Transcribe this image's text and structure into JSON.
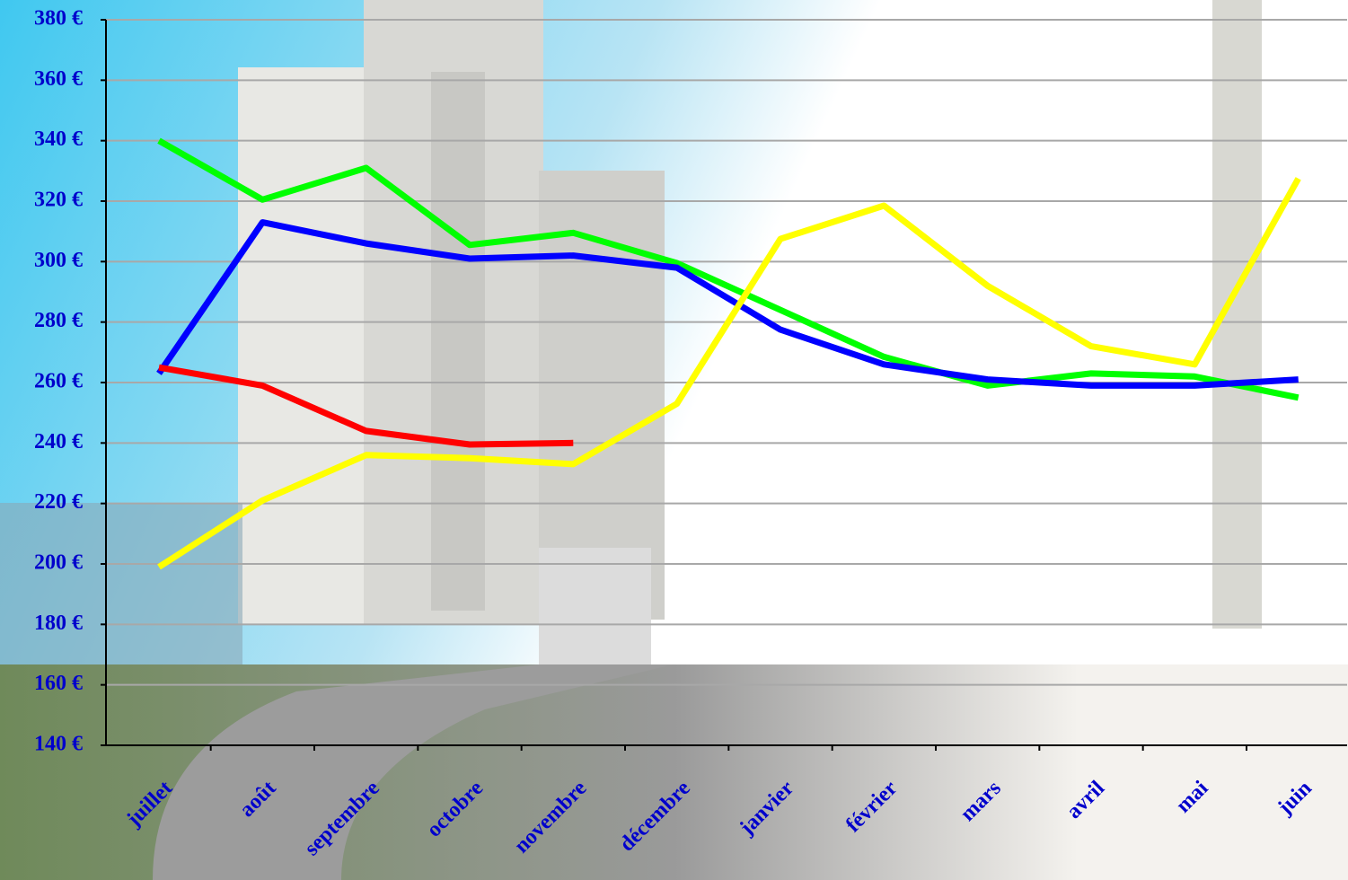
{
  "chart_data": {
    "type": "line",
    "categories": [
      "juillet",
      "août",
      "septembre",
      "octobre",
      "novembre",
      "décembre",
      "janvier",
      "février",
      "mars",
      "avril",
      "mai",
      "juin"
    ],
    "series": [
      {
        "color": "#00ff00",
        "values": [
          340,
          320.5,
          331,
          305.5,
          309.5,
          299.5,
          284,
          268.5,
          259,
          263,
          262,
          255
        ]
      },
      {
        "color": "#0000ff",
        "values": [
          263,
          313,
          306,
          301,
          302,
          298,
          277.5,
          266,
          261,
          259,
          259,
          261
        ]
      },
      {
        "color": "#ff0000",
        "values": [
          265,
          259,
          244,
          239.5,
          240,
          null,
          null,
          null,
          null,
          null,
          null,
          null
        ]
      },
      {
        "color": "#ffff00",
        "values": [
          199,
          221,
          236,
          235,
          233,
          253,
          307.5,
          318.5,
          292,
          272,
          266,
          327.5
        ]
      }
    ],
    "ylim": [
      140,
      380
    ],
    "yticks": [
      {
        "value": 140,
        "label": "140 €"
      },
      {
        "value": 160,
        "label": "160 €"
      },
      {
        "value": 180,
        "label": "180 €"
      },
      {
        "value": 200,
        "label": "200 €"
      },
      {
        "value": 220,
        "label": "220 €"
      },
      {
        "value": 240,
        "label": "240 €"
      },
      {
        "value": 260,
        "label": "260 €"
      },
      {
        "value": 280,
        "label": "280 €"
      },
      {
        "value": 300,
        "label": "300 €"
      },
      {
        "value": 320,
        "label": "320 €"
      },
      {
        "value": 340,
        "label": "340 €"
      },
      {
        "value": 360,
        "label": "360 €"
      },
      {
        "value": 380,
        "label": "380 €"
      }
    ],
    "grid": true
  }
}
